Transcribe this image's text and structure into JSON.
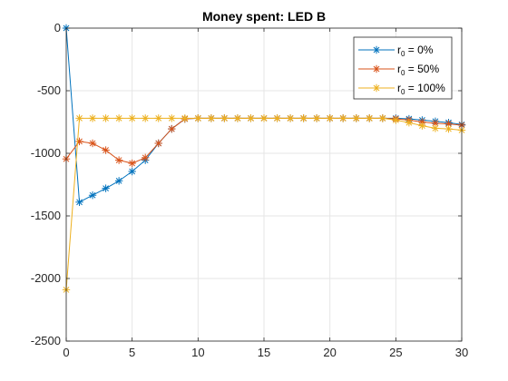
{
  "chart_data": {
    "type": "line",
    "title": "Money spent: LED B",
    "xlabel": "",
    "ylabel": "",
    "xlim": [
      0,
      30
    ],
    "ylim": [
      -2500,
      0
    ],
    "x_ticks": [
      0,
      5,
      10,
      15,
      20,
      25,
      30
    ],
    "y_ticks": [
      0,
      -500,
      -1000,
      -1500,
      -2000,
      -2500
    ],
    "grid": true,
    "legend_position": "top-right",
    "x": [
      0,
      1,
      2,
      3,
      4,
      5,
      6,
      7,
      8,
      9,
      10,
      11,
      12,
      13,
      14,
      15,
      16,
      17,
      18,
      19,
      20,
      21,
      22,
      23,
      24,
      25,
      26,
      27,
      28,
      29,
      30
    ],
    "series": [
      {
        "name": "r0 = 0%",
        "legend_base": "r",
        "legend_sub": "0",
        "legend_rest": " = 0%",
        "color": "#0072bd",
        "marker": "asterisk",
        "values": [
          0,
          -1390,
          -1335,
          -1280,
          -1220,
          -1145,
          -1055,
          -920,
          -805,
          -725,
          -720,
          -720,
          -720,
          -720,
          -720,
          -720,
          -720,
          -720,
          -720,
          -720,
          -720,
          -720,
          -720,
          -720,
          -720,
          -720,
          -725,
          -735,
          -745,
          -755,
          -770
        ]
      },
      {
        "name": "r0 = 50%",
        "legend_base": "r",
        "legend_sub": "0",
        "legend_rest": " = 50%",
        "color": "#d95319",
        "marker": "asterisk",
        "values": [
          -1045,
          -905,
          -920,
          -975,
          -1055,
          -1080,
          -1035,
          -920,
          -805,
          -725,
          -720,
          -720,
          -720,
          -720,
          -720,
          -720,
          -720,
          -720,
          -720,
          -720,
          -720,
          -720,
          -720,
          -720,
          -720,
          -725,
          -735,
          -750,
          -760,
          -765,
          -775
        ]
      },
      {
        "name": "r0 = 100%",
        "legend_base": "r",
        "legend_sub": "0",
        "legend_rest": " = 100%",
        "color": "#edb120",
        "marker": "asterisk",
        "values": [
          -2090,
          -720,
          -720,
          -720,
          -720,
          -720,
          -720,
          -720,
          -720,
          -720,
          -720,
          -720,
          -720,
          -720,
          -720,
          -720,
          -720,
          -720,
          -720,
          -720,
          -720,
          -720,
          -720,
          -720,
          -720,
          -735,
          -755,
          -780,
          -800,
          -805,
          -815
        ]
      }
    ]
  }
}
